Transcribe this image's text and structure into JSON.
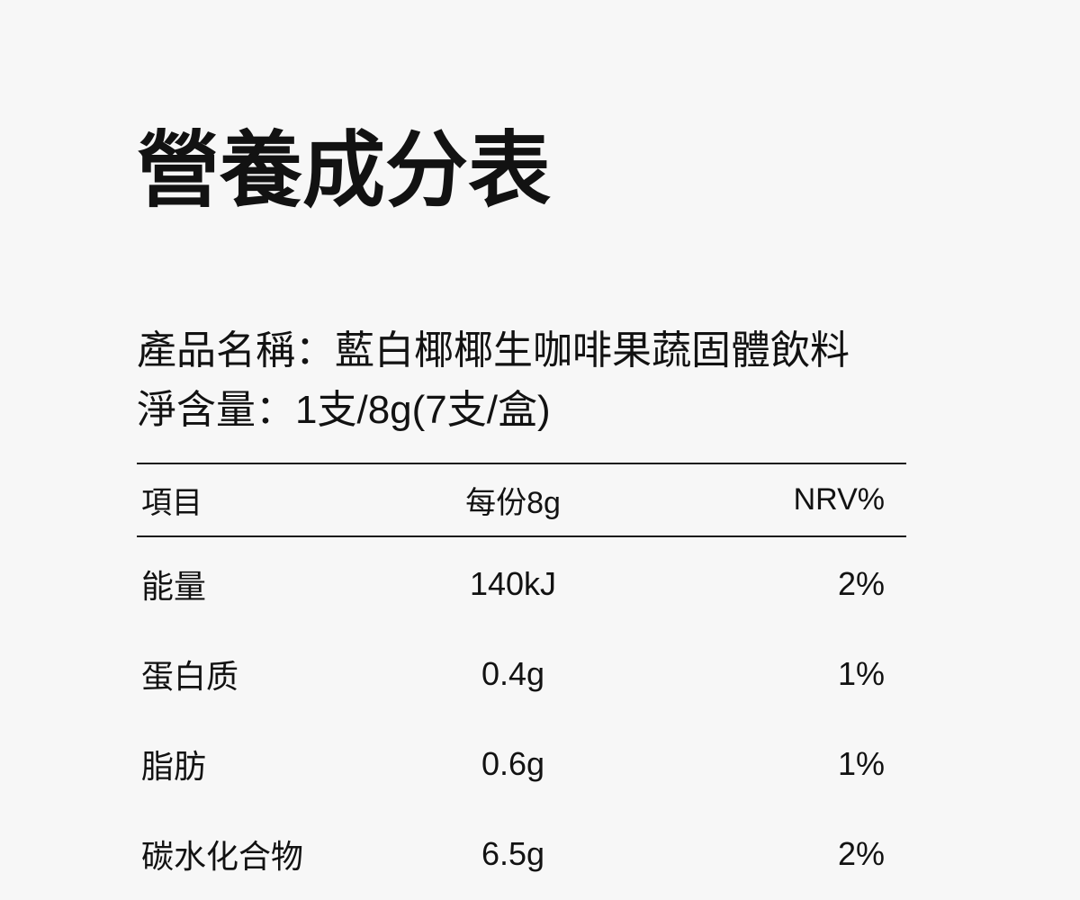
{
  "page": {
    "title": "營養成分表",
    "product": {
      "label": "產品名稱：",
      "value": "藍白椰椰生咖啡果蔬固體飲料"
    },
    "net_content": {
      "label": "淨含量：",
      "value": "1支/8g(7支/盒)"
    }
  },
  "table": {
    "headers": [
      "項目",
      "每份8g",
      "NRV%"
    ],
    "rows": [
      {
        "item": "能量",
        "per_serving": "140kJ",
        "nrv": "2%"
      },
      {
        "item": "蛋白质",
        "per_serving": "0.4g",
        "nrv": "1%"
      },
      {
        "item": "脂肪",
        "per_serving": "0.6g",
        "nrv": "1%"
      },
      {
        "item": "碳水化合物",
        "per_serving": "6.5g",
        "nrv": "2%"
      }
    ]
  },
  "colors": {
    "background": "#f7f7f7",
    "text": "#121212",
    "rule": "#1a1a1a"
  }
}
